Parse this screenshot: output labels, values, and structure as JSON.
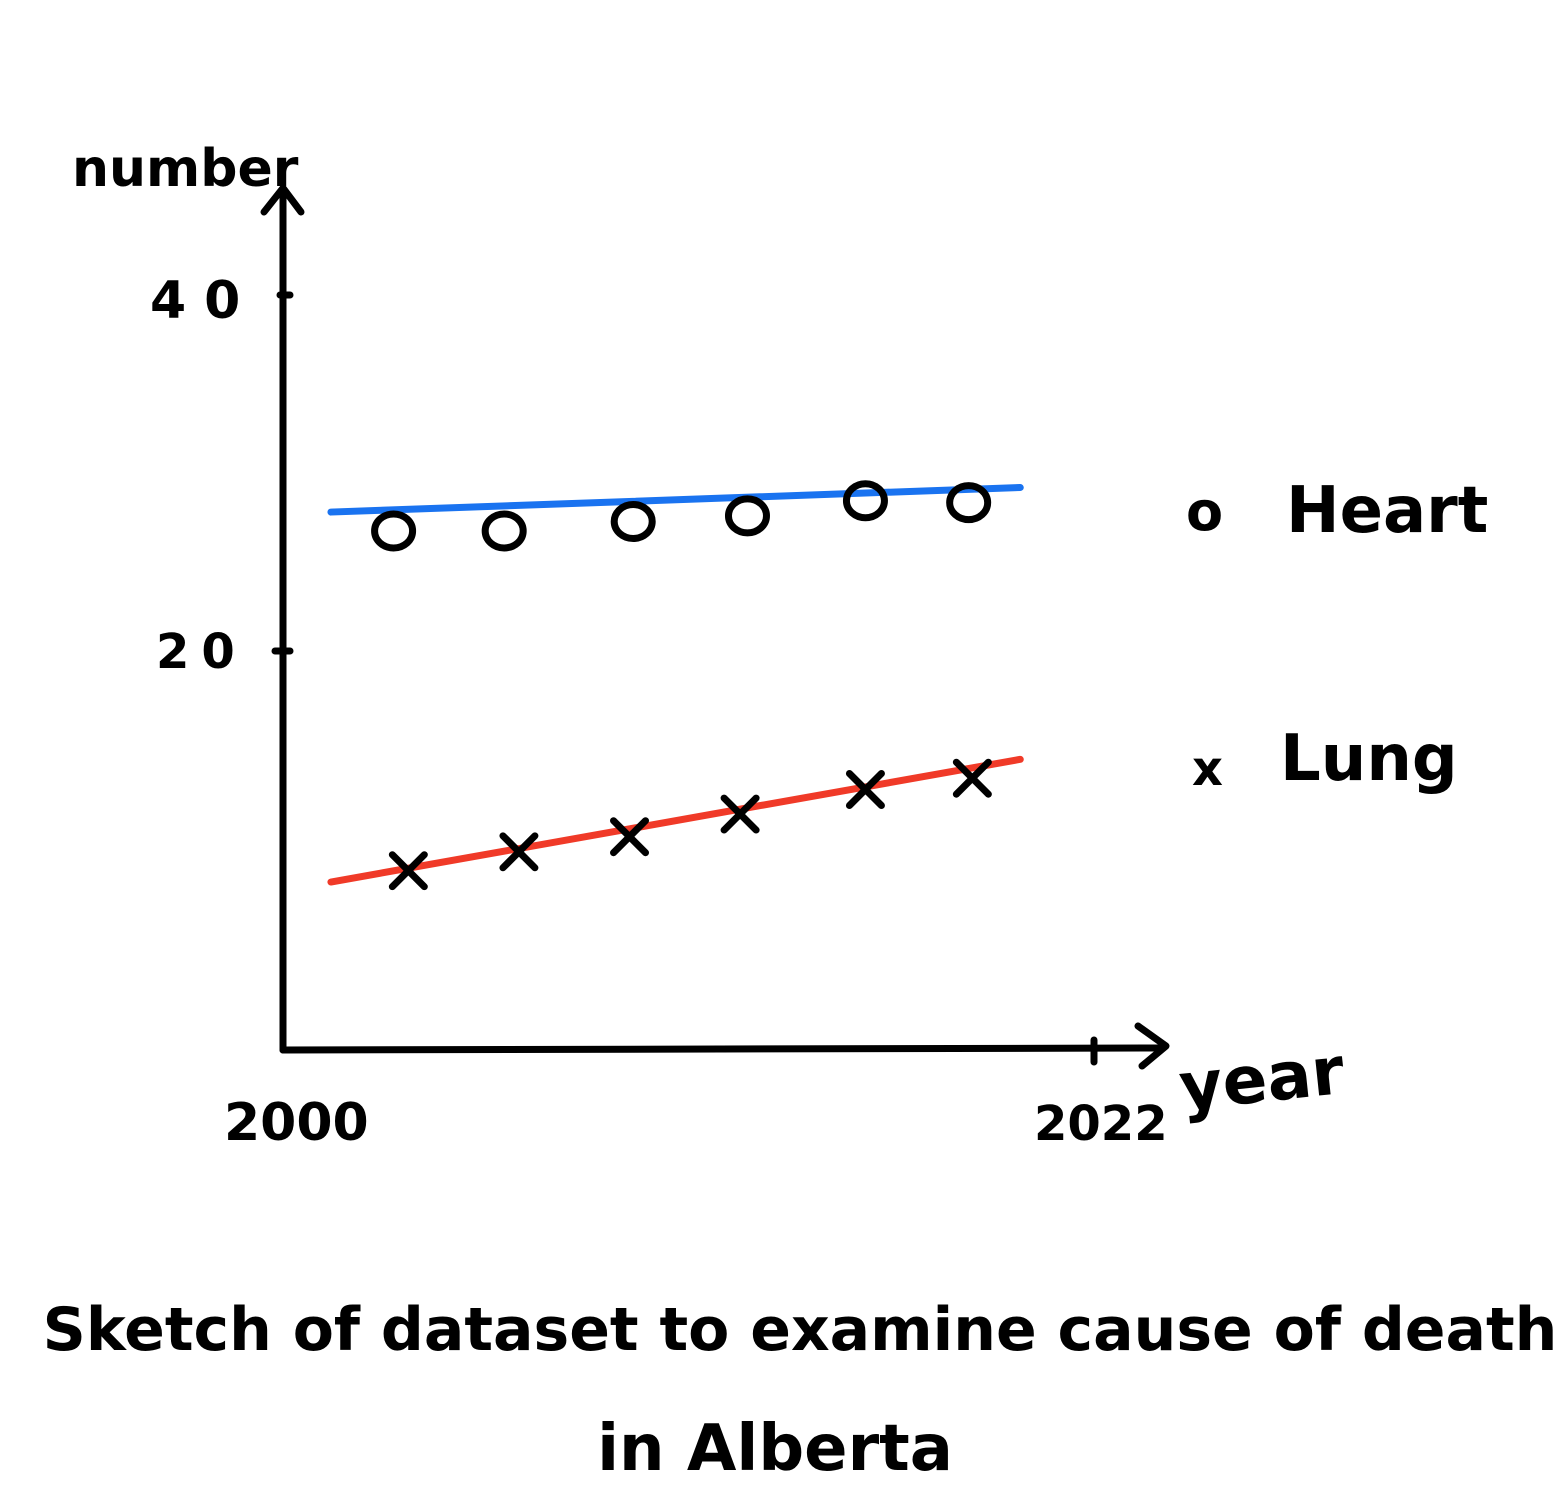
{
  "chart_data": {
    "type": "scatter",
    "title": "Sketch of dataset to examine cause of death",
    "title_line2": "in Alberta",
    "xlabel": "year",
    "ylabel": "number",
    "x_ticks": [
      "2000",
      "2022"
    ],
    "y_ticks": [
      "40",
      "20"
    ],
    "xlim": [
      2000,
      2022
    ],
    "ylim": [
      0,
      40
    ],
    "grid": false,
    "legend_position": "right",
    "series": [
      {
        "name": "Heart",
        "marker": "circle",
        "marker_glyph": "o",
        "trend_color": "#1a73f0",
        "x": [
          3,
          6,
          9.5,
          12.6,
          15.8,
          18.6
        ],
        "y": [
          27.5,
          27.5,
          28.0,
          28.3,
          29.1,
          29.0
        ],
        "trend": {
          "x": [
            1.3,
            20
          ],
          "y": [
            28.5,
            29.8
          ]
        }
      },
      {
        "name": "Lung",
        "marker": "cross",
        "marker_glyph": "x",
        "trend_color": "#f03a28",
        "x": [
          3.4,
          6.4,
          9.4,
          12.4,
          15.8,
          18.7
        ],
        "y": [
          9.5,
          10.5,
          11.3,
          12.5,
          13.8,
          14.4
        ],
        "trend": {
          "x": [
            1.3,
            20
          ],
          "y": [
            8.9,
            15.4
          ]
        }
      }
    ]
  }
}
